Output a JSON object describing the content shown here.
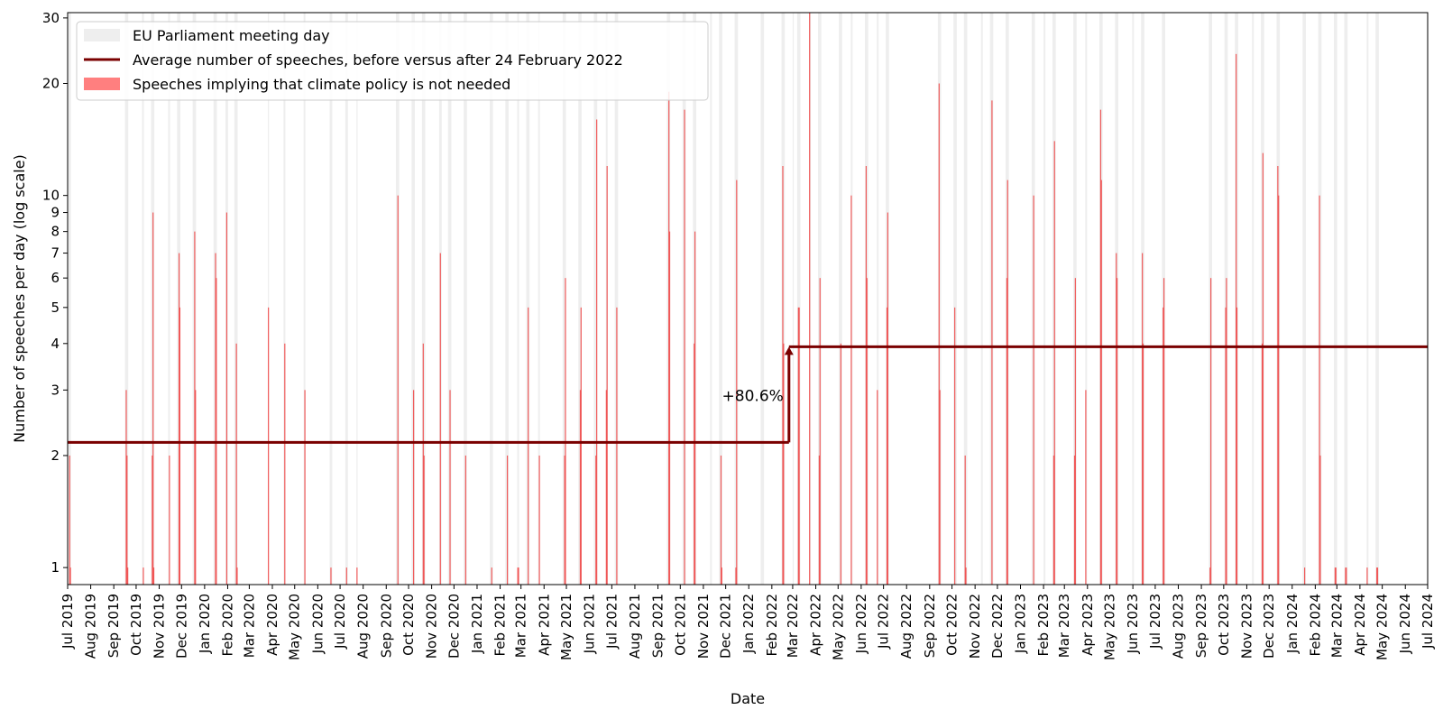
{
  "chart_data": {
    "type": "bar",
    "xlabel": "Date",
    "ylabel": "Number of speeches per day (log scale)",
    "y_scale": "log",
    "ylim": [
      0.9,
      31
    ],
    "xlim": [
      "2019-07-01",
      "2024-07-01"
    ],
    "grid": false,
    "legend_position": "top-left",
    "legend": [
      {
        "label": "EU Parliament meeting day",
        "kind": "patch",
        "color": "#eeeeee"
      },
      {
        "label": "Average number of speeches, before versus after 24 February 2022",
        "kind": "line",
        "color": "#7a0000"
      },
      {
        "label": "Speeches implying that climate policy is not needed",
        "kind": "patch",
        "color": "#ff7f7f"
      }
    ],
    "y_ticks": [
      1,
      2,
      3,
      4,
      5,
      6,
      7,
      8,
      9,
      10,
      20,
      30
    ],
    "y_tick_labels": [
      "1",
      "2",
      "3",
      "4",
      "5",
      "6",
      "7",
      "8",
      "9",
      "10",
      "20",
      "30"
    ],
    "x_ticks": [
      "2019-07-01",
      "2019-08-01",
      "2019-09-01",
      "2019-10-01",
      "2019-11-01",
      "2019-12-01",
      "2020-01-01",
      "2020-02-01",
      "2020-03-01",
      "2020-04-01",
      "2020-05-01",
      "2020-06-01",
      "2020-07-01",
      "2020-08-01",
      "2020-09-01",
      "2020-10-01",
      "2020-11-01",
      "2020-12-01",
      "2021-01-01",
      "2021-02-01",
      "2021-03-01",
      "2021-04-01",
      "2021-05-01",
      "2021-06-01",
      "2021-07-01",
      "2021-08-01",
      "2021-09-01",
      "2021-10-01",
      "2021-11-01",
      "2021-12-01",
      "2022-01-01",
      "2022-02-01",
      "2022-03-01",
      "2022-04-01",
      "2022-05-01",
      "2022-06-01",
      "2022-07-01",
      "2022-08-01",
      "2022-09-01",
      "2022-10-01",
      "2022-11-01",
      "2022-12-01",
      "2023-01-01",
      "2023-02-01",
      "2023-03-01",
      "2023-04-01",
      "2023-05-01",
      "2023-06-01",
      "2023-07-01",
      "2023-08-01",
      "2023-09-01",
      "2023-10-01",
      "2023-11-01",
      "2023-12-01",
      "2024-01-01",
      "2024-02-01",
      "2024-03-01",
      "2024-04-01",
      "2024-05-01",
      "2024-06-01",
      "2024-07-01"
    ],
    "x_tick_labels": [
      "Jul 2019",
      "Aug 2019",
      "Sep 2019",
      "Oct 2019",
      "Nov 2019",
      "Dec 2019",
      "Jan 2020",
      "Feb 2020",
      "Mar 2020",
      "Apr 2020",
      "May 2020",
      "Jun 2020",
      "Jul 2020",
      "Aug 2020",
      "Sep 2020",
      "Oct 2020",
      "Nov 2020",
      "Dec 2020",
      "Jan 2021",
      "Feb 2021",
      "Mar 2021",
      "Apr 2021",
      "May 2021",
      "Jun 2021",
      "Jul 2021",
      "Aug 2021",
      "Sep 2021",
      "Oct 2021",
      "Nov 2021",
      "Dec 2021",
      "Jan 2022",
      "Feb 2022",
      "Mar 2022",
      "Apr 2022",
      "May 2022",
      "Jun 2022",
      "Jul 2022",
      "Aug 2022",
      "Sep 2022",
      "Oct 2022",
      "Nov 2022",
      "Dec 2022",
      "Jan 2023",
      "Feb 2023",
      "Mar 2023",
      "Apr 2023",
      "May 2023",
      "Jun 2023",
      "Jul 2023",
      "Aug 2023",
      "Sep 2023",
      "Oct 2023",
      "Nov 2023",
      "Dec 2023",
      "Jan 2024",
      "Feb 2024",
      "Mar 2024",
      "Apr 2024",
      "May 2024",
      "Jun 2024",
      "Jul 2024"
    ],
    "meeting_days": [
      "2019-07-02",
      "2019-07-03",
      "2019-07-04",
      "2019-09-16",
      "2019-09-17",
      "2019-09-18",
      "2019-09-19",
      "2019-10-09",
      "2019-10-10",
      "2019-10-21",
      "2019-10-22",
      "2019-10-23",
      "2019-10-24",
      "2019-11-13",
      "2019-11-14",
      "2019-11-25",
      "2019-11-26",
      "2019-11-27",
      "2019-11-28",
      "2019-12-16",
      "2019-12-17",
      "2019-12-18",
      "2019-12-19",
      "2020-01-13",
      "2020-01-14",
      "2020-01-15",
      "2020-01-16",
      "2020-01-29",
      "2020-01-30",
      "2020-01-31",
      "2020-02-10",
      "2020-02-11",
      "2020-02-12",
      "2020-02-13",
      "2020-03-26",
      "2020-04-16",
      "2020-04-17",
      "2020-05-13",
      "2020-05-14",
      "2020-06-17",
      "2020-06-18",
      "2020-06-19",
      "2020-07-08",
      "2020-07-09",
      "2020-07-10",
      "2020-07-23",
      "2020-09-14",
      "2020-09-15",
      "2020-09-16",
      "2020-09-17",
      "2020-10-05",
      "2020-10-06",
      "2020-10-07",
      "2020-10-08",
      "2020-10-19",
      "2020-10-20",
      "2020-10-21",
      "2020-10-22",
      "2020-11-11",
      "2020-11-12",
      "2020-11-13",
      "2020-11-23",
      "2020-11-24",
      "2020-11-25",
      "2020-11-26",
      "2020-12-14",
      "2020-12-15",
      "2020-12-16",
      "2020-12-17",
      "2021-01-18",
      "2021-01-19",
      "2021-01-20",
      "2021-01-21",
      "2021-02-08",
      "2021-02-09",
      "2021-02-10",
      "2021-02-11",
      "2021-02-24",
      "2021-02-25",
      "2021-03-08",
      "2021-03-09",
      "2021-03-10",
      "2021-03-11",
      "2021-03-24",
      "2021-03-25",
      "2021-04-26",
      "2021-04-27",
      "2021-04-28",
      "2021-04-29",
      "2021-05-17",
      "2021-05-18",
      "2021-05-19",
      "2021-05-20",
      "2021-06-07",
      "2021-06-08",
      "2021-06-09",
      "2021-06-10",
      "2021-06-23",
      "2021-06-24",
      "2021-07-05",
      "2021-07-06",
      "2021-07-07",
      "2021-07-08",
      "2021-09-13",
      "2021-09-14",
      "2021-09-15",
      "2021-09-16",
      "2021-10-04",
      "2021-10-05",
      "2021-10-06",
      "2021-10-07",
      "2021-10-18",
      "2021-10-19",
      "2021-10-20",
      "2021-10-21",
      "2021-11-10",
      "2021-11-11",
      "2021-11-22",
      "2021-11-23",
      "2021-11-24",
      "2021-11-25",
      "2021-12-13",
      "2021-12-14",
      "2021-12-15",
      "2021-12-16",
      "2022-01-17",
      "2022-01-18",
      "2022-01-19",
      "2022-01-20",
      "2022-02-14",
      "2022-02-15",
      "2022-02-16",
      "2022-02-17",
      "2022-03-01",
      "2022-03-07",
      "2022-03-08",
      "2022-03-09",
      "2022-03-10",
      "2022-03-23",
      "2022-03-24",
      "2022-04-04",
      "2022-04-05",
      "2022-04-06",
      "2022-04-07",
      "2022-05-02",
      "2022-05-03",
      "2022-05-04",
      "2022-05-05",
      "2022-05-18",
      "2022-05-19",
      "2022-06-06",
      "2022-06-07",
      "2022-06-08",
      "2022-06-09",
      "2022-06-22",
      "2022-06-23",
      "2022-07-04",
      "2022-07-05",
      "2022-07-06",
      "2022-07-07",
      "2022-09-12",
      "2022-09-13",
      "2022-09-14",
      "2022-09-15",
      "2022-10-03",
      "2022-10-04",
      "2022-10-05",
      "2022-10-06",
      "2022-10-17",
      "2022-10-18",
      "2022-10-19",
      "2022-10-20",
      "2022-11-09",
      "2022-11-10",
      "2022-11-21",
      "2022-11-22",
      "2022-11-23",
      "2022-11-24",
      "2022-12-12",
      "2022-12-13",
      "2022-12-14",
      "2022-12-15",
      "2023-01-16",
      "2023-01-17",
      "2023-01-18",
      "2023-01-19",
      "2023-02-01",
      "2023-02-02",
      "2023-02-13",
      "2023-02-14",
      "2023-02-15",
      "2023-02-16",
      "2023-03-13",
      "2023-03-14",
      "2023-03-15",
      "2023-03-16",
      "2023-03-29",
      "2023-03-30",
      "2023-04-17",
      "2023-04-18",
      "2023-04-19",
      "2023-04-20",
      "2023-05-08",
      "2023-05-09",
      "2023-05-10",
      "2023-05-11",
      "2023-05-31",
      "2023-06-01",
      "2023-06-12",
      "2023-06-13",
      "2023-06-14",
      "2023-06-15",
      "2023-07-10",
      "2023-07-11",
      "2023-07-12",
      "2023-07-13",
      "2023-09-11",
      "2023-09-12",
      "2023-09-13",
      "2023-09-14",
      "2023-10-02",
      "2023-10-03",
      "2023-10-04",
      "2023-10-05",
      "2023-10-16",
      "2023-10-17",
      "2023-10-18",
      "2023-10-19",
      "2023-11-08",
      "2023-11-09",
      "2023-11-20",
      "2023-11-21",
      "2023-11-22",
      "2023-11-23",
      "2023-12-11",
      "2023-12-12",
      "2023-12-13",
      "2023-12-14",
      "2024-01-15",
      "2024-01-16",
      "2024-01-17",
      "2024-01-18",
      "2024-02-05",
      "2024-02-06",
      "2024-02-07",
      "2024-02-08",
      "2024-02-26",
      "2024-02-27",
      "2024-02-28",
      "2024-02-29",
      "2024-03-11",
      "2024-03-12",
      "2024-03-13",
      "2024-03-14",
      "2024-04-10",
      "2024-04-11",
      "2024-04-22",
      "2024-04-23",
      "2024-04-24",
      "2024-04-25"
    ],
    "speech_series": {
      "name": "Speeches implying that climate policy is not needed",
      "x": [
        "2019-07-03",
        "2019-07-04",
        "2019-09-17",
        "2019-09-18",
        "2019-09-19",
        "2019-10-10",
        "2019-10-22",
        "2019-10-23",
        "2019-10-24",
        "2019-11-14",
        "2019-11-27",
        "2019-11-28",
        "2019-12-18",
        "2019-12-19",
        "2020-01-15",
        "2020-01-16",
        "2020-01-30",
        "2020-02-12",
        "2020-02-13",
        "2020-03-26",
        "2020-04-17",
        "2020-05-14",
        "2020-06-18",
        "2020-07-09",
        "2020-07-23",
        "2020-09-16",
        "2020-10-07",
        "2020-10-20",
        "2020-10-21",
        "2020-11-12",
        "2020-11-25",
        "2020-12-16",
        "2021-01-20",
        "2021-02-10",
        "2021-02-24",
        "2021-02-25",
        "2021-03-10",
        "2021-03-25",
        "2021-04-28",
        "2021-04-29",
        "2021-05-19",
        "2021-05-20",
        "2021-06-09",
        "2021-06-10",
        "2021-06-23",
        "2021-06-24",
        "2021-07-07",
        "2021-09-15",
        "2021-09-16",
        "2021-10-06",
        "2021-10-19",
        "2021-10-20",
        "2021-11-24",
        "2021-11-25",
        "2021-12-14",
        "2021-12-15",
        "2022-02-15",
        "2022-02-16",
        "2022-03-08",
        "2022-03-09",
        "2022-03-23",
        "2022-04-05",
        "2022-04-06",
        "2022-05-04",
        "2022-05-18",
        "2022-06-07",
        "2022-06-08",
        "2022-06-22",
        "2022-07-05",
        "2022-07-06",
        "2022-09-13",
        "2022-09-14",
        "2022-10-04",
        "2022-10-18",
        "2022-10-19",
        "2022-11-23",
        "2022-12-13",
        "2022-12-14",
        "2023-01-18",
        "2023-02-14",
        "2023-02-15",
        "2023-03-14",
        "2023-03-15",
        "2023-03-29",
        "2023-04-18",
        "2023-04-19",
        "2023-05-09",
        "2023-05-10",
        "2023-06-13",
        "2023-06-14",
        "2023-07-11",
        "2023-07-12",
        "2023-09-12",
        "2023-09-13",
        "2023-10-03",
        "2023-10-04",
        "2023-10-17",
        "2023-10-18",
        "2023-11-21",
        "2023-11-22",
        "2023-12-12",
        "2023-12-13",
        "2024-01-17",
        "2024-02-06",
        "2024-02-07",
        "2024-02-27",
        "2024-02-28",
        "2024-03-12",
        "2024-03-13",
        "2024-04-10",
        "2024-04-23",
        "2024-04-24"
      ],
      "values": [
        2,
        1,
        3,
        2,
        1,
        1,
        2,
        9,
        1,
        2,
        7,
        5,
        8,
        3,
        7,
        6,
        9,
        4,
        1,
        5,
        4,
        3,
        1,
        1,
        1,
        10,
        3,
        4,
        2,
        7,
        3,
        2,
        1,
        2,
        1,
        1,
        5,
        2,
        2,
        6,
        3,
        5,
        2,
        16,
        3,
        12,
        5,
        19,
        8,
        17,
        4,
        8,
        2,
        1,
        1,
        11,
        12,
        4,
        5,
        5,
        31,
        2,
        6,
        4,
        10,
        12,
        6,
        3,
        5,
        9,
        20,
        3,
        5,
        2,
        1,
        18,
        6,
        11,
        10,
        2,
        14,
        2,
        6,
        3,
        17,
        11,
        7,
        6,
        7,
        4,
        5,
        6,
        1,
        6,
        5,
        6,
        24,
        5,
        4,
        13,
        12,
        10,
        1,
        10,
        2,
        1,
        1,
        1,
        1,
        1,
        1,
        1
      ]
    },
    "averages": [
      {
        "period": "before",
        "x_start": "2019-07-01",
        "x_end": "2022-02-24",
        "value": 2.17
      },
      {
        "period": "after",
        "x_start": "2022-02-24",
        "x_end": "2024-07-01",
        "value": 3.92
      }
    ],
    "annotation": {
      "text": "+80.6%",
      "x": "2022-02-24",
      "y_from": 2.17,
      "y_to": 3.92,
      "color": "#7a0000"
    },
    "colors": {
      "meeting_day": "#eeeeee",
      "speech_bar": "#f04a4a",
      "average_line": "#7a0000"
    }
  }
}
